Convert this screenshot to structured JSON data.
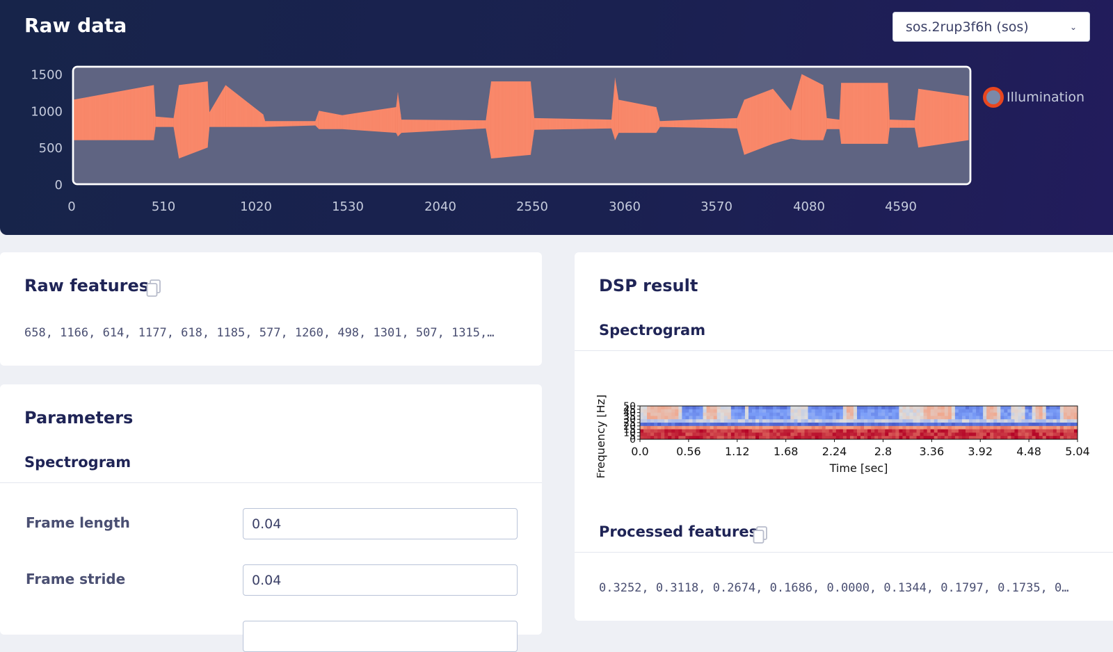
{
  "header": {
    "title": "Raw data",
    "sample_select": {
      "value": "sos.2rup3f6h (sos)"
    }
  },
  "chart_data": {
    "type": "area",
    "series": [
      {
        "name": "Illumination",
        "color": "#fa8a6c"
      }
    ],
    "x_ticks": [
      "0",
      "510",
      "1020",
      "1530",
      "2040",
      "2550",
      "3060",
      "3570",
      "4080",
      "4590"
    ],
    "y_ticks": [
      "1500",
      "1000",
      "500",
      "0"
    ],
    "xlim": [
      0,
      5000
    ],
    "ylim": [
      0,
      1600
    ],
    "envelope": [
      {
        "x": 0,
        "lo": 600,
        "hi": 1150
      },
      {
        "x": 450,
        "lo": 600,
        "hi": 1350
      },
      {
        "x": 460,
        "lo": 780,
        "hi": 920
      },
      {
        "x": 560,
        "lo": 780,
        "hi": 900
      },
      {
        "x": 590,
        "lo": 350,
        "hi": 1350
      },
      {
        "x": 750,
        "lo": 500,
        "hi": 1400
      },
      {
        "x": 760,
        "lo": 780,
        "hi": 980
      },
      {
        "x": 850,
        "lo": 780,
        "hi": 1350
      },
      {
        "x": 1060,
        "lo": 780,
        "hi": 950
      },
      {
        "x": 1070,
        "lo": 780,
        "hi": 860
      },
      {
        "x": 1350,
        "lo": 800,
        "hi": 860
      },
      {
        "x": 1370,
        "lo": 750,
        "hi": 1000
      },
      {
        "x": 1500,
        "lo": 750,
        "hi": 940
      },
      {
        "x": 1800,
        "lo": 700,
        "hi": 1050
      },
      {
        "x": 1810,
        "lo": 650,
        "hi": 1250
      },
      {
        "x": 1830,
        "lo": 700,
        "hi": 880
      },
      {
        "x": 2300,
        "lo": 760,
        "hi": 870
      },
      {
        "x": 2330,
        "lo": 350,
        "hi": 1400
      },
      {
        "x": 2550,
        "lo": 400,
        "hi": 1400
      },
      {
        "x": 2570,
        "lo": 740,
        "hi": 900
      },
      {
        "x": 3000,
        "lo": 760,
        "hi": 880
      },
      {
        "x": 3020,
        "lo": 600,
        "hi": 1450
      },
      {
        "x": 3040,
        "lo": 700,
        "hi": 1150
      },
      {
        "x": 3250,
        "lo": 700,
        "hi": 1050
      },
      {
        "x": 3270,
        "lo": 780,
        "hi": 860
      },
      {
        "x": 3700,
        "lo": 760,
        "hi": 900
      },
      {
        "x": 3740,
        "lo": 400,
        "hi": 1150
      },
      {
        "x": 3900,
        "lo": 550,
        "hi": 1300
      },
      {
        "x": 4000,
        "lo": 620,
        "hi": 1000
      },
      {
        "x": 4060,
        "lo": 600,
        "hi": 1500
      },
      {
        "x": 4180,
        "lo": 600,
        "hi": 1350
      },
      {
        "x": 4200,
        "lo": 750,
        "hi": 900
      },
      {
        "x": 4270,
        "lo": 750,
        "hi": 880
      },
      {
        "x": 4280,
        "lo": 550,
        "hi": 1380
      },
      {
        "x": 4540,
        "lo": 550,
        "hi": 1380
      },
      {
        "x": 4550,
        "lo": 770,
        "hi": 880
      },
      {
        "x": 4690,
        "lo": 770,
        "hi": 870
      },
      {
        "x": 4710,
        "lo": 500,
        "hi": 1300
      },
      {
        "x": 4990,
        "lo": 600,
        "hi": 1200
      }
    ]
  },
  "raw_features": {
    "title": "Raw features",
    "values": "658, 1166, 614, 1177, 618, 1185, 577, 1260, 498, 1301, 507, 1315,…"
  },
  "parameters": {
    "title": "Parameters",
    "section": "Spectrogram",
    "fields": [
      {
        "label": "Frame length",
        "value": "0.04"
      },
      {
        "label": "Frame stride",
        "value": "0.04"
      }
    ]
  },
  "dsp": {
    "title": "DSP result",
    "section": "Spectrogram",
    "spectrogram": {
      "type": "heatmap",
      "xlabel": "Time [sec]",
      "ylabel": "Frequency [Hz]",
      "x_ticks": [
        "0.0",
        "0.56",
        "1.12",
        "1.68",
        "2.24",
        "2.8",
        "3.36",
        "3.92",
        "4.48",
        "5.04"
      ],
      "y_ticks": [
        "50",
        "45",
        "40",
        "35",
        "30",
        "25",
        "20",
        "15",
        "10",
        "5",
        "0"
      ]
    },
    "processed_title": "Processed features",
    "processed_values": "0.3252, 0.3118, 0.2674, 0.1686, 0.0000, 0.1344, 0.1797, 0.1735, 0…"
  }
}
